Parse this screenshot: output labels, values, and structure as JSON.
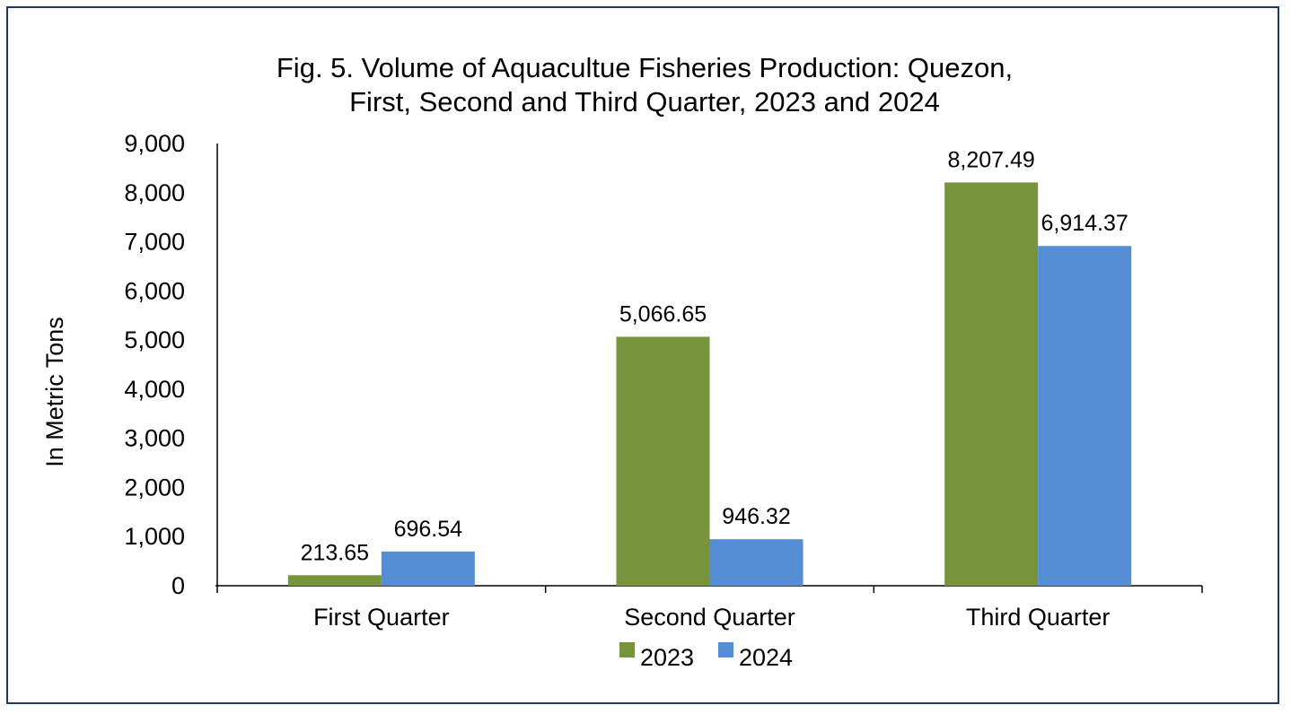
{
  "chart_data": {
    "type": "bar",
    "title_lines": [
      "Fig. 5. Volume of Aquacultue Fisheries  Production: Quezon,",
      "First, Second and Third Quarter, 2023 and 2024"
    ],
    "xlabel": "",
    "ylabel": "In Metric Tons",
    "ylim": [
      0,
      9000
    ],
    "yticks": [
      0,
      1000,
      2000,
      3000,
      4000,
      5000,
      6000,
      7000,
      8000,
      9000
    ],
    "ytick_labels": [
      "0",
      "1,000",
      "2,000",
      "3,000",
      "4,000",
      "5,000",
      "6,000",
      "7,000",
      "8,000",
      "9,000"
    ],
    "categories": [
      "First Quarter",
      "Second Quarter",
      "Third Quarter"
    ],
    "series": [
      {
        "name": "2023",
        "color": "#77933c",
        "values": [
          213.65,
          5066.65,
          8207.49
        ],
        "labels": [
          "213.65",
          "5,066.65",
          "8,207.49"
        ]
      },
      {
        "name": "2024",
        "color": "#558ed5",
        "values": [
          696.54,
          946.32,
          6914.37
        ],
        "labels": [
          "696.54",
          "946.32",
          "6,914.37"
        ]
      }
    ],
    "grid": false,
    "legend_position": "bottom"
  }
}
